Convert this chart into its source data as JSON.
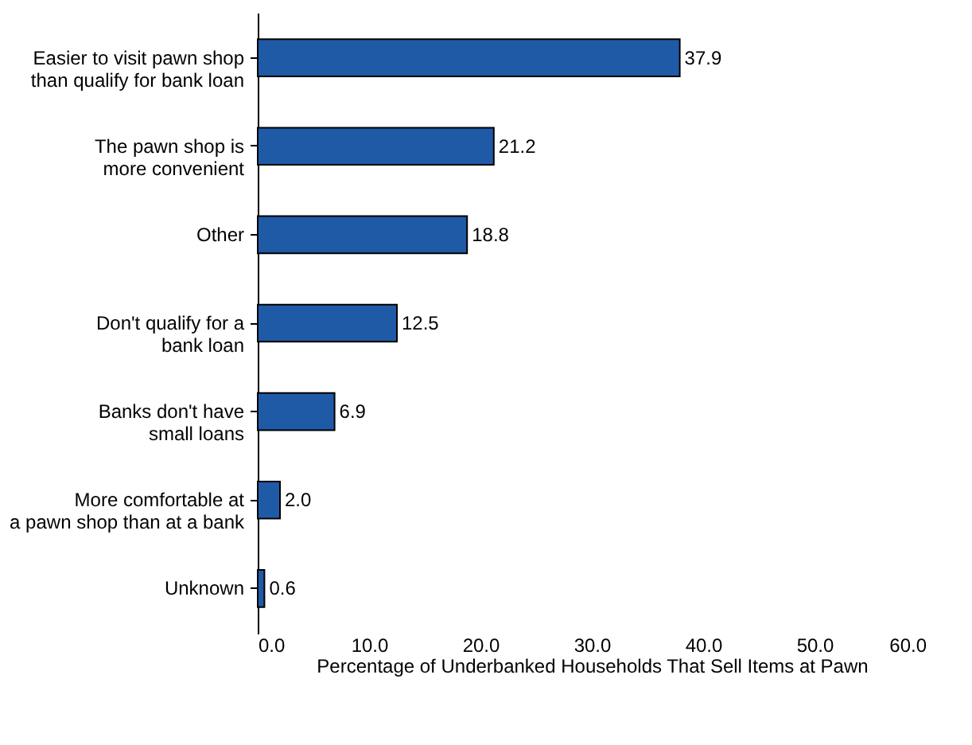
{
  "chart_data": {
    "type": "bar",
    "orientation": "horizontal",
    "xlabel": "Percentage of Underbanked Households That Sell Items at Pawn",
    "categories": [
      "Easier to visit pawn shop\nthan qualify for bank loan",
      "The pawn shop is\nmore convenient",
      "Other",
      "Don't qualify for a\nbank loan",
      "Banks don't have\nsmall loans",
      "More comfortable at\na pawn shop than at a bank",
      "Unknown"
    ],
    "values": [
      37.9,
      21.2,
      18.8,
      12.5,
      6.9,
      2.0,
      0.6
    ],
    "value_labels": [
      "37.9",
      "21.2",
      "18.8",
      "12.5",
      "6.9",
      "2.0",
      "0.6"
    ],
    "color": "#1f5aa6",
    "xlim": [
      0,
      60
    ],
    "xticks": [
      {
        "value": 0,
        "label": "0.0"
      },
      {
        "value": 10,
        "label": "10.0"
      },
      {
        "value": 20,
        "label": "20.0"
      },
      {
        "value": 30,
        "label": "30.0"
      },
      {
        "value": 40,
        "label": "40.0"
      },
      {
        "value": 50,
        "label": "50.0"
      },
      {
        "value": 60,
        "label": "60.0"
      }
    ],
    "grid": false
  }
}
